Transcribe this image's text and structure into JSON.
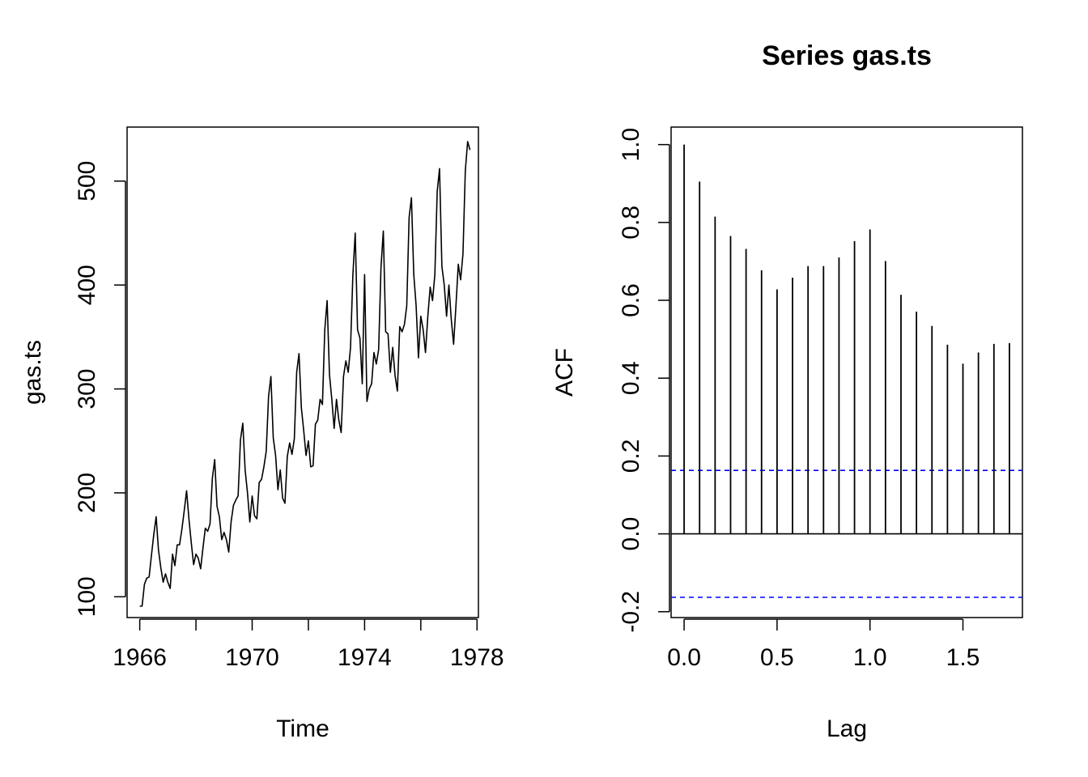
{
  "chart_data": [
    {
      "type": "line",
      "title": "",
      "xlabel": "Time",
      "ylabel": "gas.ts",
      "xlim": [
        1965.55,
        1978.05
      ],
      "ylim": [
        80,
        552
      ],
      "xticks": [
        1966,
        1968,
        1970,
        1972,
        1974,
        1976,
        1978
      ],
      "xtick_labels": [
        "1966",
        "1970",
        "1974",
        "1978"
      ],
      "yticks": [
        100,
        200,
        300,
        400,
        500
      ],
      "ytick_labels": [
        "100",
        "200",
        "300",
        "400",
        "500"
      ],
      "grid": false,
      "legend": "none",
      "line_color": "#000000",
      "series": [
        {
          "x_start": 1966.0,
          "x_step": 0.0833333333,
          "values": [
            91,
            91,
            112,
            118,
            119,
            140,
            160,
            177,
            145,
            128,
            114,
            122,
            114,
            108,
            141,
            130,
            150,
            150,
            165,
            183,
            202,
            175,
            152,
            131,
            141,
            137,
            127,
            147,
            166,
            163,
            170,
            214,
            232,
            187,
            177,
            155,
            162,
            155,
            143,
            172,
            188,
            193,
            197,
            251,
            267,
            222,
            200,
            172,
            197,
            178,
            175,
            210,
            213,
            225,
            240,
            293,
            312,
            253,
            236,
            203,
            222,
            195,
            190,
            235,
            248,
            237,
            252,
            316,
            334,
            282,
            260,
            236,
            250,
            225,
            226,
            266,
            270,
            290,
            285,
            357,
            385,
            314,
            290,
            262,
            290,
            270,
            258,
            312,
            327,
            316,
            340,
            410,
            450,
            357,
            349,
            305,
            410,
            288,
            300,
            305,
            335,
            324,
            338,
            417,
            452,
            355,
            353,
            316,
            340,
            313,
            298,
            360,
            355,
            362,
            380,
            465,
            484,
            410,
            380,
            330,
            370,
            357,
            335,
            370,
            398,
            385,
            410,
            490,
            512,
            418,
            400,
            370,
            400,
            367,
            343,
            380,
            420,
            405,
            430,
            510,
            538,
            530
          ]
        }
      ]
    },
    {
      "type": "bar",
      "title": "Series  gas.ts",
      "xlabel": "Lag",
      "ylabel": "ACF",
      "xlim": [
        -0.07,
        1.82
      ],
      "ylim": [
        -0.215,
        1.045
      ],
      "xticks": [
        0.0,
        0.5,
        1.0,
        1.5
      ],
      "xtick_labels": [
        "0.0",
        "0.5",
        "1.0",
        "1.5"
      ],
      "yticks": [
        -0.2,
        0.0,
        0.2,
        0.4,
        0.6,
        0.8,
        1.0
      ],
      "ytick_labels": [
        "-0.2",
        "0.0",
        "0.2",
        "0.4",
        "0.6",
        "0.8",
        "1.0"
      ],
      "grid": false,
      "legend": "none",
      "zero_line": 0,
      "confidence_bounds": [
        0.163,
        -0.163
      ],
      "bound_color": "#0000ff",
      "lags": [
        0.0,
        0.0833,
        0.1667,
        0.25,
        0.3333,
        0.4167,
        0.5,
        0.5833,
        0.6667,
        0.75,
        0.8333,
        0.9167,
        1.0,
        1.0833,
        1.1667,
        1.25,
        1.3333,
        1.4167,
        1.5,
        1.5833,
        1.6667,
        1.75
      ],
      "values": [
        1.0,
        0.905,
        0.815,
        0.765,
        0.732,
        0.677,
        0.628,
        0.658,
        0.688,
        0.688,
        0.71,
        0.752,
        0.782,
        0.701,
        0.614,
        0.571,
        0.534,
        0.486,
        0.437,
        0.466,
        0.488,
        0.49
      ]
    }
  ]
}
